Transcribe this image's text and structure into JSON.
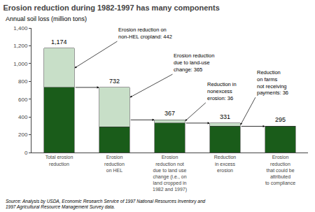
{
  "chart_data": {
    "type": "bar",
    "stacked": true,
    "title": "Erosion reduction during 1982-1997 has many components",
    "ylabel": "Annual soil loss (million tons)",
    "categories": [
      "Total erosion\nreduction",
      "Erosion\nreduction\non HEL",
      "Erosion\nreduction not\ndue to land use\nchange (i.e., on\nland cropped in\n1982 and 1997)",
      "Reduction\nin excess\nerosion",
      "Erosion\nreduction\nthat could be\nattributed\nto compliance"
    ],
    "series": [
      {
        "color": "#1a5c1a",
        "values": [
          732,
          290,
          331,
          295,
          295
        ]
      },
      {
        "color": "#c8dfc8",
        "values": [
          442,
          442,
          36,
          36,
          0
        ]
      }
    ],
    "totals": [
      1174,
      732,
      367,
      331,
      295
    ],
    "total_labels": [
      "1,174",
      "732",
      "367",
      "331",
      "295"
    ],
    "connector_levels": [
      732,
      367,
      331,
      295
    ],
    "annotations": [
      "Erosion reduction on\nnon-HEL cropland: 442",
      "Erosion reduction\ndue to land-use\nchange: 365",
      "Reduction in\nnonexcess\nerosion: 36",
      "Reduction\non farms\nnot receiving\npayments: 36"
    ],
    "source": "Source: Analysis by USDA, Economic Research Service of 1997 National Resources Inventory and\n1997 Agricultural Resource Management Survey data.",
    "ylim": [
      0,
      1400
    ],
    "yticks": [
      0,
      200,
      400,
      600,
      800,
      {
        "value": 1000,
        "label": "1,000"
      },
      {
        "value": 1200,
        "label": "1,200"
      },
      {
        "value": 1400,
        "label": "1,400"
      }
    ],
    "grid": false
  }
}
